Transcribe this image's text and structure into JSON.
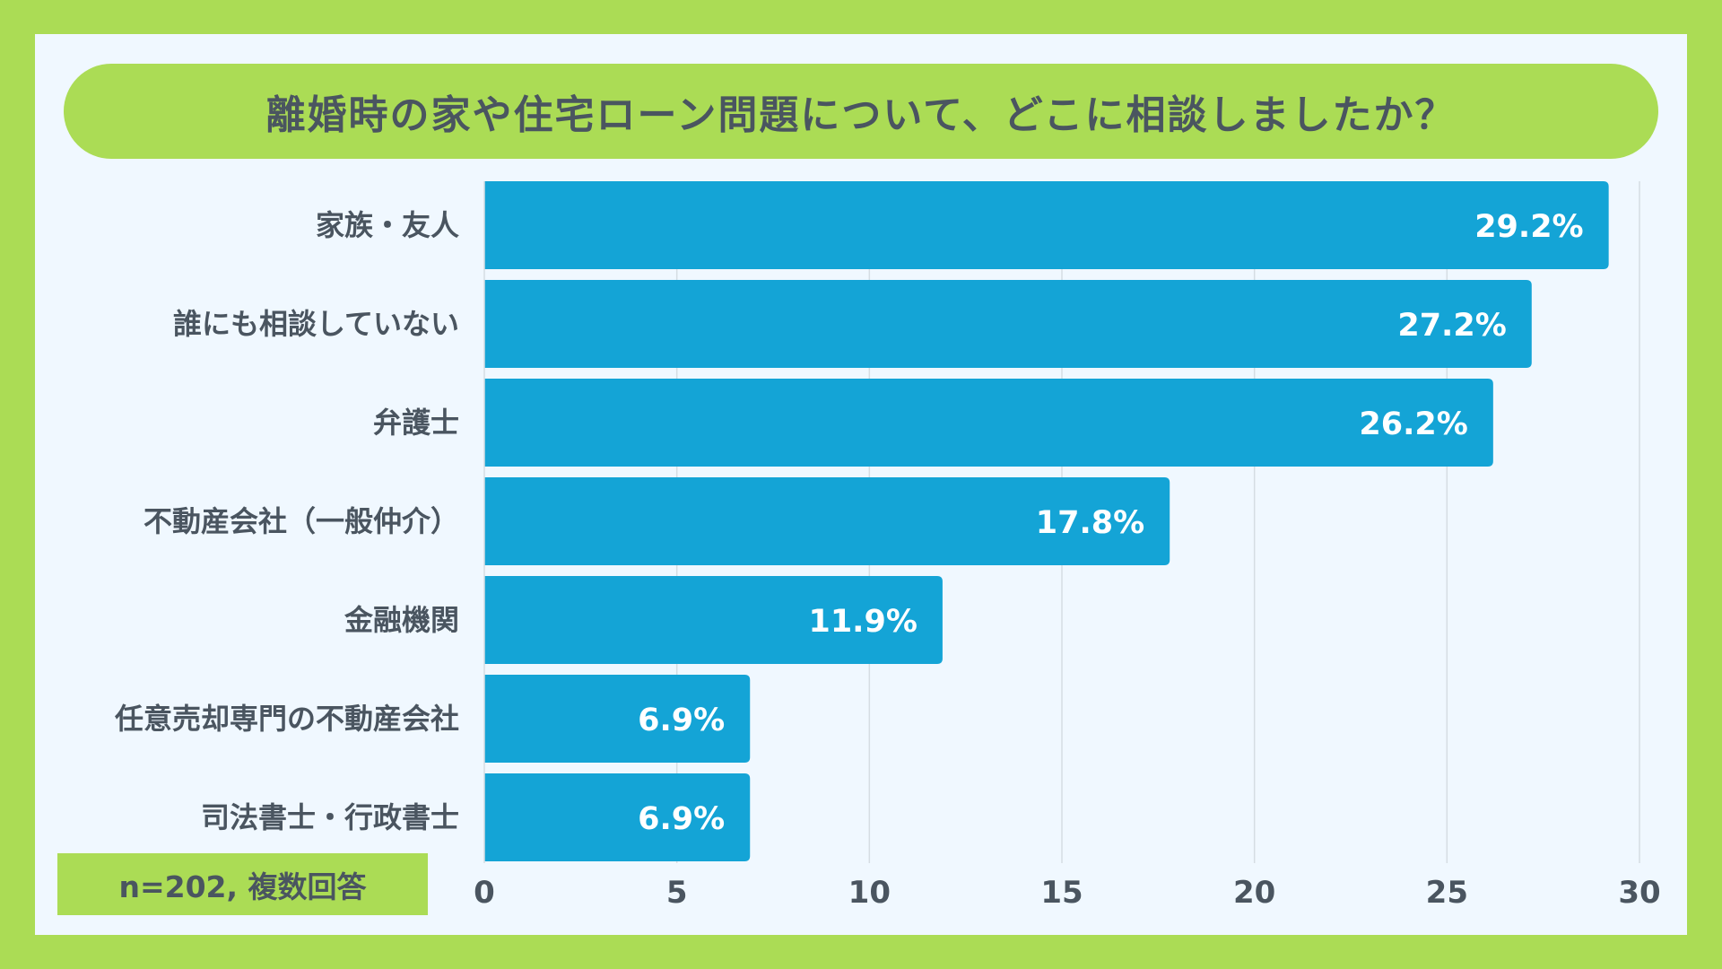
{
  "chart_data": {
    "type": "bar",
    "orientation": "horizontal",
    "title": "離婚時の家や住宅ローン問題について、どこに相談しましたか？",
    "categories": [
      "家族・友人",
      "誰にも相談していない",
      "弁護士",
      "不動産会社（一般仲介）",
      "金融機関",
      "任意売却専門の不動産会社",
      "司法書士・行政書士"
    ],
    "values": [
      29.2,
      27.2,
      26.2,
      17.8,
      11.9,
      6.9,
      6.9
    ],
    "value_labels": [
      "29.2%",
      "27.2%",
      "26.2%",
      "17.8%",
      "11.9%",
      "6.9%",
      "6.9%"
    ],
    "xlim": [
      0,
      30
    ],
    "xticks": [
      "0",
      "5",
      "10",
      "15",
      "20",
      "25",
      "30"
    ],
    "xlabel": "",
    "ylabel": "",
    "grid": true,
    "note": "n=202, 複数回答",
    "colors": {
      "bar": "#14a4d6",
      "background": "#abdc55",
      "panel": "#f0f8ff",
      "text": "#4a5560",
      "grid": "#d5dde3"
    }
  }
}
